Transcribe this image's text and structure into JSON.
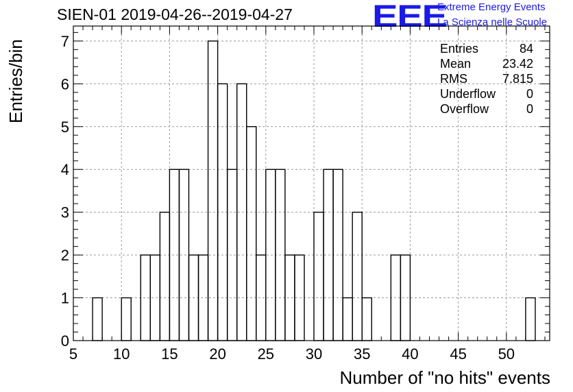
{
  "title": "SIEN-01 2019-04-26--2019-04-27",
  "logo": {
    "mark": "EEE",
    "line1": "Extreme Energy Events",
    "line2": "La Scienza nelle Scuole",
    "color": "#1a1ae6"
  },
  "stats": [
    {
      "key": "Entries",
      "value": "84"
    },
    {
      "key": "Mean",
      "value": "23.42"
    },
    {
      "key": "RMS",
      "value": "7.815"
    },
    {
      "key": "Underflow",
      "value": "0"
    },
    {
      "key": "Overflow",
      "value": "0"
    }
  ],
  "chart_data": {
    "type": "bar",
    "title": "SIEN-01 2019-04-26--2019-04-27",
    "xlabel": "Number of \"no hits\" events",
    "ylabel": "Entries/bin",
    "xlim": [
      5,
      54.5
    ],
    "ylim": [
      0,
      7.35
    ],
    "bin_width": 1,
    "grid": true,
    "x_ticks": [
      "5",
      "10",
      "15",
      "20",
      "25",
      "30",
      "35",
      "40",
      "45",
      "50"
    ],
    "y_ticks": [
      "0",
      "1",
      "2",
      "3",
      "4",
      "5",
      "6",
      "7"
    ],
    "bins": [
      7,
      10,
      12,
      13,
      14,
      15,
      16,
      17,
      18,
      19,
      20,
      21,
      22,
      23,
      24,
      25,
      26,
      27,
      28,
      30,
      31,
      32,
      33,
      34,
      35,
      38,
      39,
      52
    ],
    "values": [
      1,
      1,
      2,
      2,
      3,
      4,
      4,
      2,
      2,
      7,
      6,
      4,
      6,
      5,
      2,
      4,
      4,
      2,
      2,
      3,
      4,
      4,
      1,
      3,
      1,
      2,
      2,
      1
    ],
    "stats_box_position": "top-right"
  }
}
